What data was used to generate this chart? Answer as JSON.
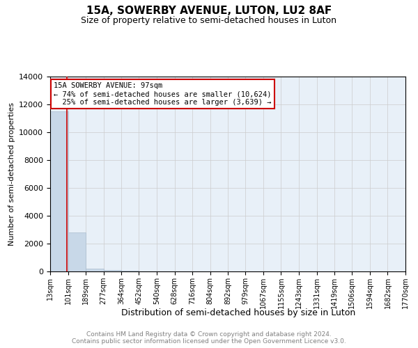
{
  "title": "15A, SOWERBY AVENUE, LUTON, LU2 8AF",
  "subtitle": "Size of property relative to semi-detached houses in Luton",
  "xlabel": "Distribution of semi-detached houses by size in Luton",
  "ylabel": "Number of semi-detached properties",
  "footer_line1": "Contains HM Land Registry data © Crown copyright and database right 2024.",
  "footer_line2": "Contains public sector information licensed under the Open Government Licence v3.0.",
  "bin_labels": [
    "13sqm",
    "101sqm",
    "189sqm",
    "277sqm",
    "364sqm",
    "452sqm",
    "540sqm",
    "628sqm",
    "716sqm",
    "804sqm",
    "892sqm",
    "979sqm",
    "1067sqm",
    "1155sqm",
    "1243sqm",
    "1331sqm",
    "1419sqm",
    "1506sqm",
    "1594sqm",
    "1682sqm",
    "1770sqm"
  ],
  "bin_edges": [
    13,
    101,
    189,
    277,
    364,
    452,
    540,
    628,
    716,
    804,
    892,
    979,
    1067,
    1155,
    1243,
    1331,
    1419,
    1506,
    1594,
    1682,
    1770
  ],
  "bar_heights": [
    11500,
    2800,
    180,
    80,
    30,
    20,
    15,
    10,
    8,
    6,
    5,
    4,
    3,
    2,
    2,
    2,
    1,
    1,
    1,
    1
  ],
  "bar_color": "#c8d8e8",
  "bar_edgecolor": "#aabcce",
  "ylim": [
    0,
    14000
  ],
  "property_size": 97,
  "property_label": "15A SOWERBY AVENUE: 97sqm",
  "pct_smaller": 74,
  "count_smaller": "10,624",
  "pct_larger": 25,
  "count_larger": "3,639",
  "annotation_box_color": "#cc0000",
  "vline_color": "#cc0000",
  "title_fontsize": 11,
  "subtitle_fontsize": 9,
  "tick_fontsize": 7,
  "ylabel_fontsize": 8,
  "xlabel_fontsize": 9,
  "footer_fontsize": 6.5,
  "ann_fontsize": 7.5
}
